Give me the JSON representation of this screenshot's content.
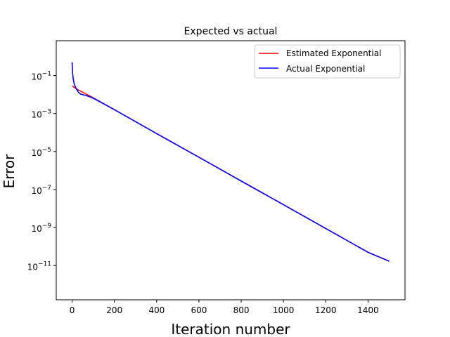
{
  "chart_data": {
    "type": "line",
    "title": "Expected vs actual",
    "xlabel": "Iteration number",
    "ylabel": "Error",
    "xlim": [
      -75,
      1575
    ],
    "ylim_log10": [
      -12.8,
      0.83
    ],
    "yscale": "log",
    "grid": false,
    "legend_position": "top-right",
    "x_ticks": [
      {
        "value": 0,
        "label": "0"
      },
      {
        "value": 200,
        "label": "200"
      },
      {
        "value": 400,
        "label": "400"
      },
      {
        "value": 600,
        "label": "600"
      },
      {
        "value": 800,
        "label": "800"
      },
      {
        "value": 1000,
        "label": "1000"
      },
      {
        "value": 1200,
        "label": "1200"
      },
      {
        "value": 1400,
        "label": "1400"
      }
    ],
    "y_ticks": [
      {
        "exp": -1,
        "base": "10",
        "sup": "−1"
      },
      {
        "exp": -3,
        "base": "10",
        "sup": "−3"
      },
      {
        "exp": -5,
        "base": "10",
        "sup": "−5"
      },
      {
        "exp": -7,
        "base": "10",
        "sup": "−7"
      },
      {
        "exp": -9,
        "base": "10",
        "sup": "−9"
      },
      {
        "exp": -11,
        "base": "10",
        "sup": "−11"
      }
    ],
    "series": [
      {
        "name": "Estimated Exponential",
        "color": "#ff0000",
        "x": [
          0,
          20,
          40,
          60,
          80,
          100,
          200,
          400,
          600,
          800,
          1000,
          1200,
          1400,
          1500
        ],
        "y": [
          0.028,
          0.02,
          0.015,
          0.0115,
          0.0087,
          0.0067,
          0.0016,
          8.8e-05,
          5e-06,
          2.8e-07,
          1.6e-08,
          8.9e-10,
          5e-11,
          1.7e-11
        ]
      },
      {
        "name": "Actual Exponential",
        "color": "#0000ff",
        "x": [
          0,
          2,
          5,
          10,
          20,
          30,
          40,
          60,
          80,
          100,
          200,
          400,
          600,
          800,
          1000,
          1200,
          1400,
          1500
        ],
        "y": [
          0.5,
          0.15,
          0.07,
          0.035,
          0.02,
          0.013,
          0.0105,
          0.0092,
          0.0078,
          0.0064,
          0.0016,
          8.8e-05,
          5e-06,
          2.8e-07,
          1.6e-08,
          8.9e-10,
          5e-11,
          1.7e-11
        ]
      }
    ]
  }
}
